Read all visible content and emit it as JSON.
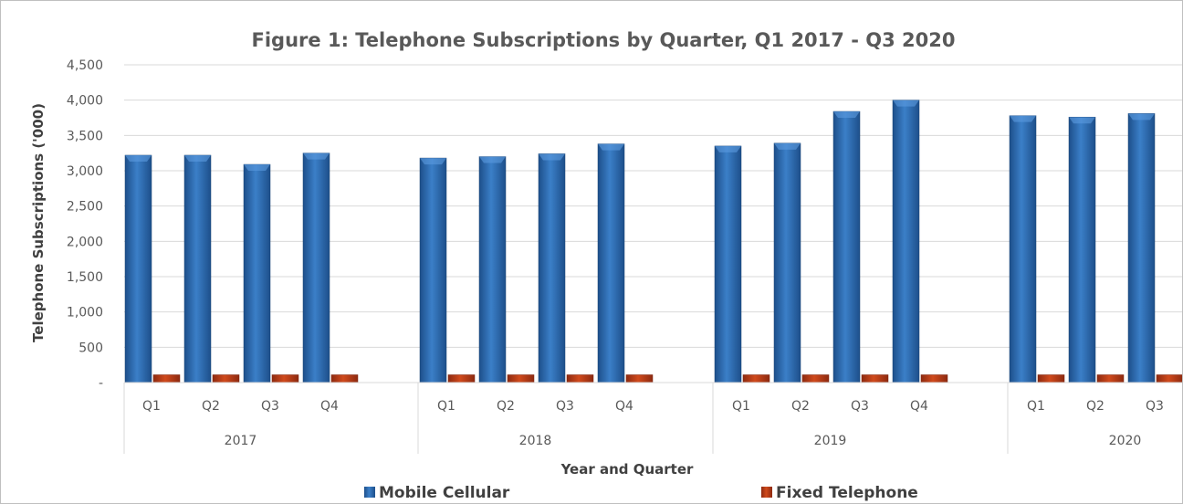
{
  "chart_data": {
    "type": "bar",
    "title": "Figure 1: Telephone Subscriptions by Quarter, Q1 2017 - Q3 2020",
    "xlabel": "Year and Quarter",
    "ylabel": "Telephone Subscriptions ('000)",
    "ylim": [
      0,
      4500
    ],
    "ytick_labels": [
      "-",
      "500",
      "1,000",
      "1,500",
      "2,000",
      "2,500",
      "3,000",
      "3,500",
      "4,000",
      "4,500"
    ],
    "grid": true,
    "legend_position": "bottom",
    "groups": [
      {
        "year": "2017",
        "quarters": [
          "Q1",
          "Q2",
          "Q3",
          "Q4"
        ]
      },
      {
        "year": "2018",
        "quarters": [
          "Q1",
          "Q2",
          "Q3",
          "Q4"
        ]
      },
      {
        "year": "2019",
        "quarters": [
          "Q1",
          "Q2",
          "Q3",
          "Q4"
        ]
      },
      {
        "year": "2020",
        "quarters": [
          "Q1",
          "Q2",
          "Q3"
        ]
      }
    ],
    "series": [
      {
        "name": "Mobile Cellular",
        "color": "#2e6db4",
        "values": [
          3220,
          3220,
          3090,
          3250,
          3180,
          3200,
          3240,
          3380,
          3350,
          3390,
          3840,
          4000,
          3780,
          3760,
          3810
        ]
      },
      {
        "name": "Fixed Telephone",
        "color": "#c0392b",
        "values": [
          110,
          110,
          110,
          110,
          110,
          110,
          110,
          110,
          110,
          110,
          110,
          110,
          110,
          110,
          110
        ]
      }
    ]
  }
}
